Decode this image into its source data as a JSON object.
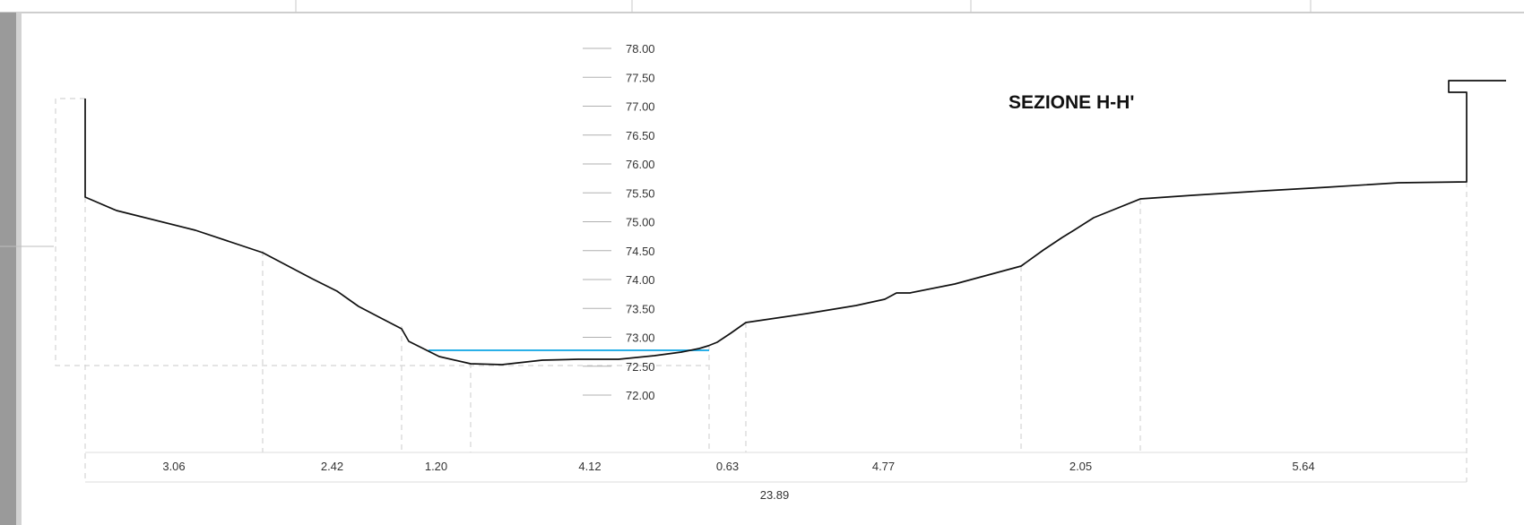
{
  "section": {
    "title": "SEZIONE H-H'",
    "elevation_scale": [
      "78.00",
      "77.50",
      "77.00",
      "76.50",
      "76.00",
      "75.50",
      "75.00",
      "74.50",
      "74.00",
      "73.50",
      "73.00",
      "72.50",
      "72.00"
    ],
    "segment_widths": [
      "3.06",
      "2.42",
      "1.20",
      "4.12",
      "0.63",
      "4.77",
      "2.05",
      "5.64"
    ],
    "total_width": "23.89",
    "colors": {
      "profile": "#111111",
      "water": "#2ab0e8",
      "guides": "#d4d4d4",
      "frame": "#bdbdbd"
    }
  }
}
